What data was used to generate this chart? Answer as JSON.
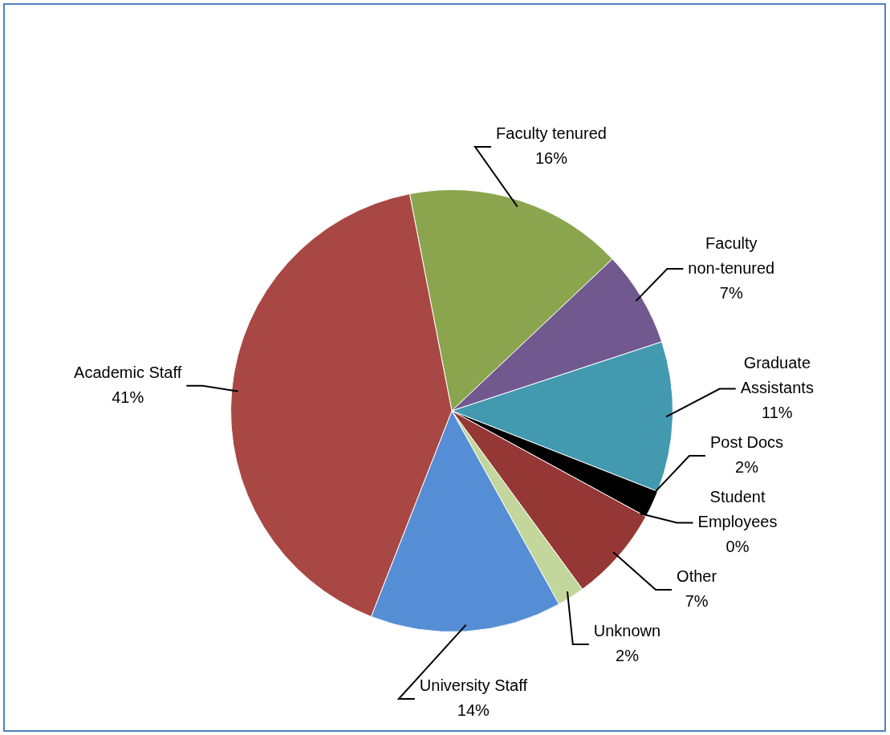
{
  "chart_data": {
    "type": "pie",
    "categories": [
      "Faculty tenured",
      "Faculty non-tenured",
      "Graduate Assistants",
      "Post Docs",
      "Student Employees",
      "Other",
      "Unknown",
      "University Staff",
      "Academic Staff"
    ],
    "values": [
      16,
      7,
      11,
      2,
      0,
      7,
      2,
      14,
      41
    ],
    "value_labels": [
      "16%",
      "7%",
      "11%",
      "2%",
      "0%",
      "7%",
      "2%",
      "14%",
      "41%"
    ],
    "colors": [
      "#8ba54e",
      "#71598f",
      "#4299b0",
      "#000000",
      "#ffffff",
      "#953735",
      "#c3d69b",
      "#558ed5",
      "#a84744"
    ],
    "legend": false
  }
}
